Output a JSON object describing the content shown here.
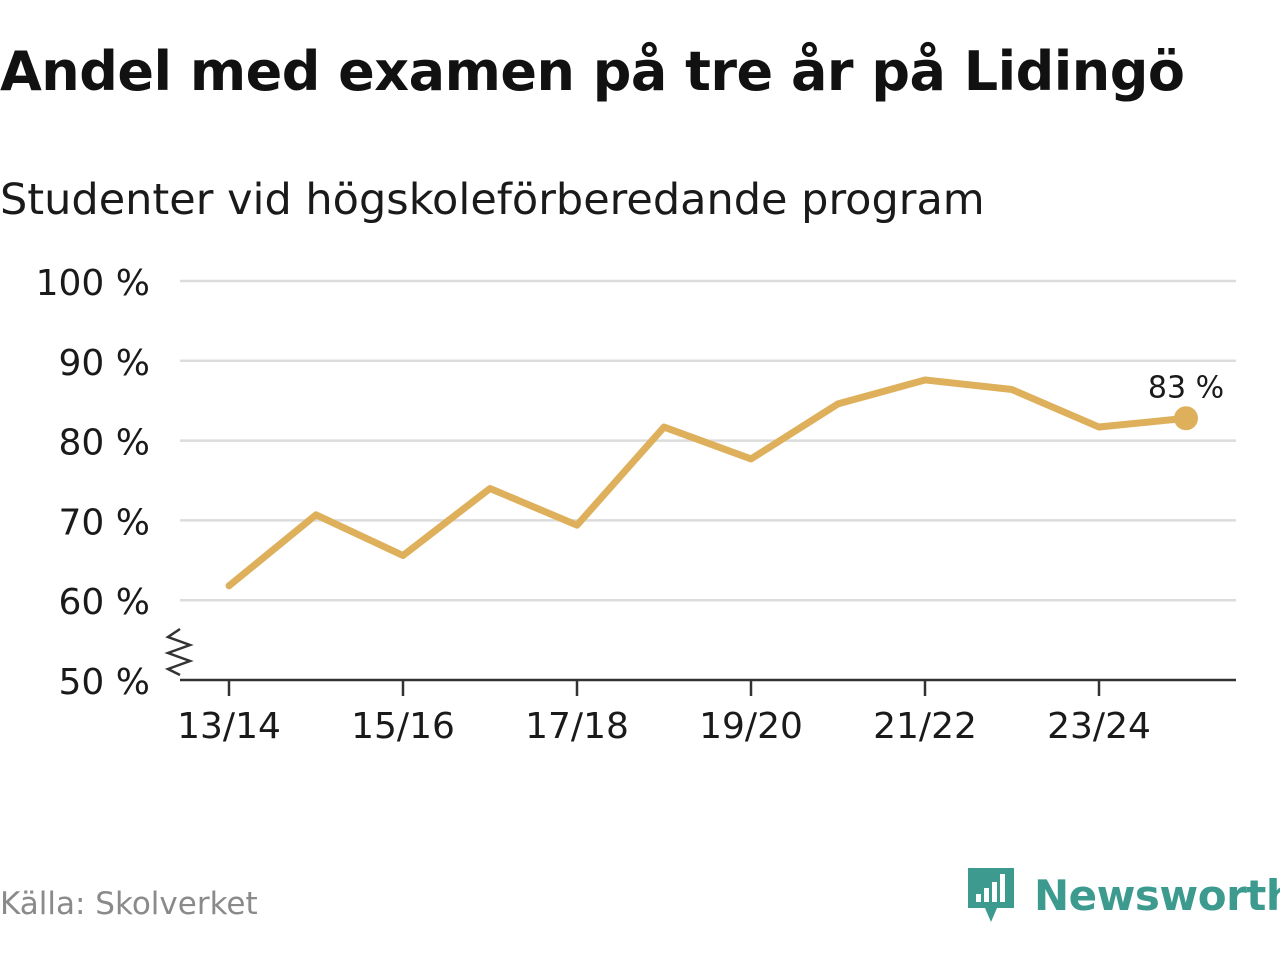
{
  "title": "Andel med examen på tre år på Lidingö",
  "subtitle": "Studenter vid högskoleförberedande program",
  "source": "Källa: Skolverket",
  "brand": {
    "name": "Newsworthy",
    "icon": "newsworthy-logo-icon",
    "color": "#3d9a8f"
  },
  "chart_data": {
    "type": "line",
    "title": "Andel med examen på tre år på Lidingö",
    "subtitle": "Studenter vid högskoleförberedande program",
    "xlabel": "",
    "ylabel": "",
    "x": [
      "13/14",
      "14/15",
      "15/16",
      "16/17",
      "17/18",
      "18/19",
      "19/20",
      "20/21",
      "21/22",
      "22/23",
      "23/24",
      "24/25"
    ],
    "x_tick_labels": [
      "13/14",
      "15/16",
      "17/18",
      "19/20",
      "21/22",
      "23/24"
    ],
    "y_ticks": [
      50,
      60,
      70,
      80,
      90,
      100
    ],
    "y_tick_labels": [
      "50 %",
      "60 %",
      "70 %",
      "80 %",
      "90 %",
      "100 %"
    ],
    "ylim": [
      50,
      100
    ],
    "axis_break": true,
    "grid": true,
    "series": [
      {
        "name": "Andel med examen",
        "color": "#deb05c",
        "values": [
          61.8,
          70.7,
          65.6,
          74.0,
          69.4,
          81.7,
          77.7,
          84.6,
          87.6,
          86.4,
          81.7,
          82.8
        ]
      }
    ],
    "end_label": "83 %"
  },
  "colors": {
    "line": "#deb05c",
    "grid": "#dcdcdc",
    "axis": "#333333",
    "text": "#1a1a1a",
    "source": "#8a8a8a",
    "brand": "#3d9a8f"
  }
}
